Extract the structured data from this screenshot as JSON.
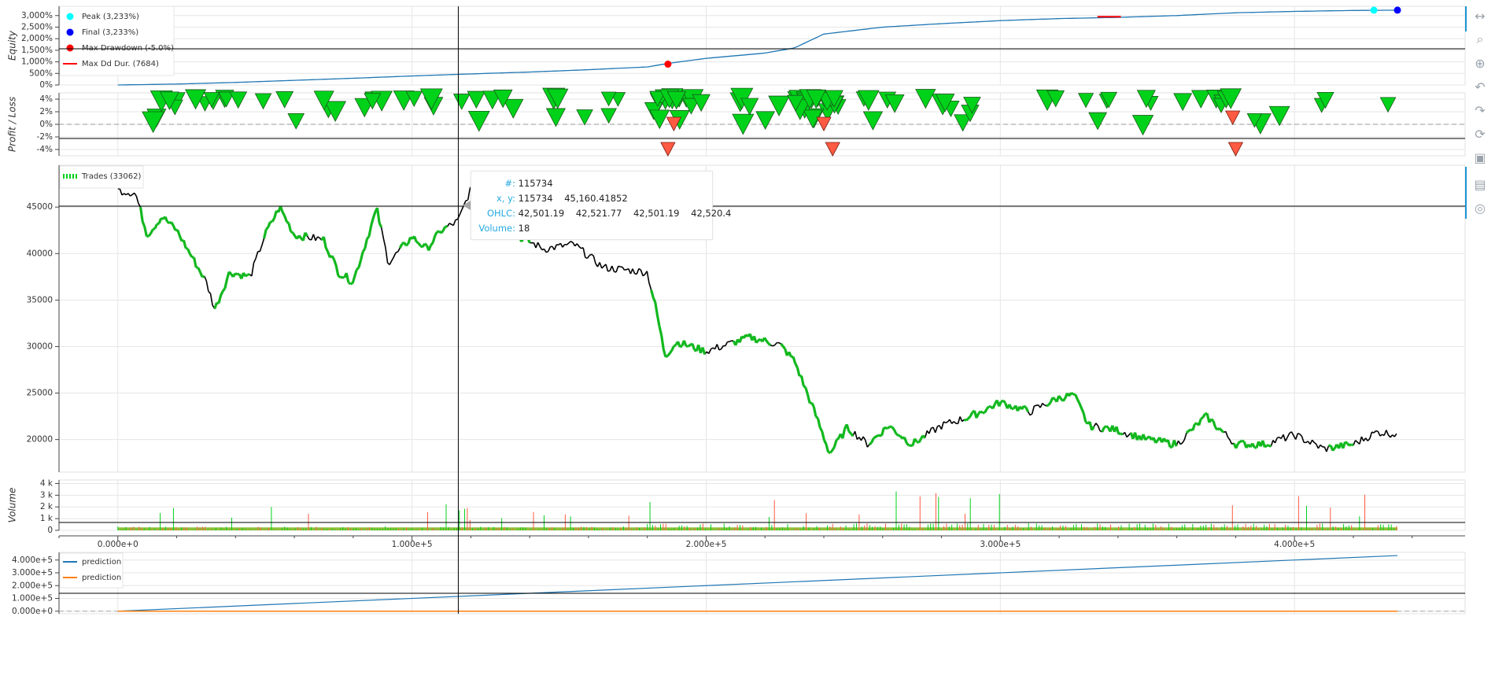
{
  "colors": {
    "accent": "#1e95d4",
    "grid": "#e6e6e6",
    "up": "#00d21a",
    "down": "#ff5a42",
    "price": "#000000",
    "equity": "#1f77b4",
    "peak": "#00ffff",
    "final": "#0000ff",
    "drawdown": "#ff0000",
    "orange": "#ff7f0e"
  },
  "toolbar": [
    {
      "name": "pan-icon",
      "glyph": "↔"
    },
    {
      "name": "box-zoom-icon",
      "glyph": "⌕"
    },
    {
      "name": "wheel-zoom-icon",
      "glyph": "⊕"
    },
    {
      "name": "undo-icon",
      "glyph": "↶"
    },
    {
      "name": "redo-icon",
      "glyph": "↷"
    },
    {
      "name": "reset-icon",
      "glyph": "⟳"
    },
    {
      "name": "save-icon",
      "glyph": "▣"
    },
    {
      "name": "hover-icon",
      "glyph": "▤"
    },
    {
      "name": "crosshair-icon",
      "glyph": "◎"
    }
  ],
  "tooltip": {
    "index_label": "#:",
    "index_value": "115734",
    "xy_label": "x, y:",
    "xy_x": "115734",
    "xy_y": "45,160.41852",
    "ohlc_label": "OHLC:",
    "ohlc_values": [
      "42,501.19",
      "42,521.77",
      "42,501.19",
      "42,520.4"
    ],
    "volume_label": "Volume:",
    "volume_value": "18"
  },
  "chart_data": [
    {
      "type": "line",
      "ylabel": "Equity",
      "yticks": [
        "0%",
        "500%",
        "1,000%",
        "1,500%",
        "2,000%",
        "2,500%",
        "3,000%"
      ],
      "ylim": [
        0,
        3400
      ],
      "legend": [
        {
          "label": "Peak (3,233%)",
          "marker": "circle",
          "color": "#00ffff"
        },
        {
          "label": "Final (3,233%)",
          "marker": "circle",
          "color": "#0000ff"
        },
        {
          "label": "Max Drawdown (-5.0%)",
          "marker": "circle",
          "color": "#ff0000"
        },
        {
          "label": "Max Dd Dur. (7684)",
          "marker": "line",
          "color": "#ff0000"
        }
      ],
      "x": [
        0,
        20000,
        40000,
        60000,
        80000,
        100000,
        115734,
        140000,
        160000,
        180000,
        188000,
        200000,
        220000,
        230000,
        240000,
        260000,
        280000,
        300000,
        320000,
        340000,
        360000,
        380000,
        400000,
        420000,
        435000
      ],
      "y": [
        0,
        40,
        110,
        200,
        290,
        390,
        460,
        560,
        660,
        780,
        950,
        1150,
        1380,
        1600,
        2200,
        2500,
        2650,
        2780,
        2870,
        2920,
        3000,
        3120,
        3180,
        3220,
        3233
      ],
      "peak": {
        "x": 427000,
        "y": 3233
      },
      "final": {
        "x": 435000,
        "y": 3233
      },
      "max_drawdown": {
        "x": 187000,
        "y": 900
      },
      "max_dd_duration": {
        "x0": 333000,
        "x1": 341000,
        "y": 2950
      }
    },
    {
      "type": "scatter",
      "ylabel": "Profit / Loss",
      "yticks": [
        "-4%",
        "-2%",
        "0%",
        "2%",
        "4%"
      ],
      "ylim": [
        -5,
        5
      ]
    },
    {
      "type": "line",
      "legend": [
        {
          "label": "Trades (33062)",
          "marker": "dashed-line",
          "color": "#00d21a"
        }
      ],
      "yticks": [
        "20000",
        "25000",
        "30000",
        "35000",
        "40000",
        "45000"
      ],
      "ylim": [
        16500,
        49500
      ],
      "x": [
        0,
        6000,
        10000,
        15000,
        20000,
        30000,
        33000,
        38000,
        45000,
        50000,
        55000,
        60000,
        70000,
        75000,
        80000,
        88000,
        92000,
        100000,
        105000,
        110000,
        115734,
        120000,
        128000,
        135000,
        145000,
        155000,
        165000,
        180000,
        183000,
        186000,
        190000,
        200000,
        210000,
        215000,
        225000,
        230000,
        238000,
        242000,
        248000,
        255000,
        262000,
        270000,
        280000,
        290000,
        300000,
        310000,
        320000,
        325000,
        330000,
        340000,
        350000,
        360000,
        370000,
        380000,
        390000,
        400000,
        410000,
        420000,
        428000,
        435000
      ],
      "y": [
        46800,
        46500,
        42000,
        44000,
        42500,
        37000,
        34000,
        38000,
        37500,
        42000,
        45000,
        42000,
        41500,
        38000,
        37000,
        44800,
        39000,
        41800,
        40500,
        42500,
        43500,
        47000,
        44500,
        42000,
        40500,
        41000,
        38500,
        38000,
        34000,
        29000,
        30500,
        29500,
        30500,
        31000,
        30200,
        28500,
        22000,
        18500,
        21300,
        19500,
        21500,
        19500,
        21500,
        22500,
        24000,
        23000,
        24500,
        24800,
        21500,
        21000,
        20000,
        19500,
        22500,
        19500,
        19500,
        20500,
        19000,
        19500,
        20800,
        20600
      ]
    },
    {
      "type": "bar",
      "ylabel": "Volume",
      "yticks": [
        "0",
        "1 k",
        "2 k",
        "3 k",
        "4 k"
      ],
      "ylim": [
        0,
        4300
      ]
    },
    {
      "type": "line",
      "legend": [
        {
          "label": "prediction",
          "color": "#1f77b4"
        },
        {
          "label": "prediction",
          "color": "#ff7f0e"
        }
      ],
      "yticks": [
        "0.000e+0",
        "1.000e+5",
        "2.000e+5",
        "3.000e+5",
        "4.000e+5"
      ],
      "ylim": [
        -20000,
        460000
      ],
      "series": [
        {
          "name": "prediction",
          "x": [
            0,
            435000
          ],
          "y": [
            0,
            435000
          ]
        },
        {
          "name": "prediction",
          "x": [
            0,
            435000
          ],
          "y": [
            0,
            0
          ]
        }
      ],
      "xticks": [
        "0.000e+0",
        "1.000e+5",
        "2.000e+5",
        "3.000e+5",
        "4.000e+5"
      ],
      "xlim": [
        -20000,
        458000
      ]
    }
  ]
}
